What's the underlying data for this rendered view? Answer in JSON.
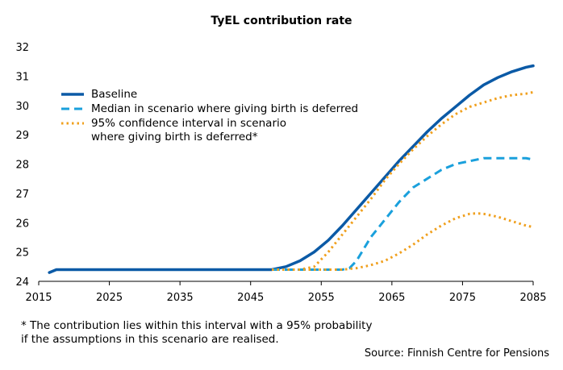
{
  "chart_data": {
    "type": "line",
    "title": "TyEL contribution rate",
    "xlabel": "",
    "ylabel": "",
    "xlim": [
      2015,
      2085
    ],
    "ylim": [
      24,
      32
    ],
    "xticks": [
      2015,
      2025,
      2035,
      2045,
      2055,
      2065,
      2075,
      2085
    ],
    "yticks": [
      24,
      25,
      26,
      27,
      28,
      29,
      30,
      31,
      32
    ],
    "grid": false,
    "legend_position": "top-left",
    "series": [
      {
        "name": "Baseline",
        "style": "solid",
        "color": "#0b5aa6",
        "x": [
          2016.5,
          2017.5,
          2020,
          2030,
          2040,
          2048,
          2050,
          2052,
          2054,
          2056,
          2058,
          2060,
          2062,
          2064,
          2066,
          2068,
          2070,
          2072,
          2074,
          2076,
          2078,
          2080,
          2082,
          2084,
          2085
        ],
        "y": [
          24.3,
          24.4,
          24.4,
          24.4,
          24.4,
          24.4,
          24.5,
          24.7,
          25.0,
          25.4,
          25.9,
          26.45,
          27.0,
          27.55,
          28.1,
          28.6,
          29.1,
          29.55,
          29.95,
          30.35,
          30.7,
          30.95,
          31.15,
          31.3,
          31.35
        ]
      },
      {
        "name": "Median in scenario where giving birth is deferred",
        "style": "dashed",
        "color": "#1aa0dc",
        "x": [
          2048,
          2052,
          2056,
          2058,
          2059,
          2060,
          2061,
          2062,
          2064,
          2066,
          2068,
          2070,
          2072,
          2074,
          2076,
          2078,
          2080,
          2082,
          2084,
          2085
        ],
        "y": [
          24.4,
          24.4,
          24.4,
          24.4,
          24.45,
          24.7,
          25.1,
          25.5,
          26.1,
          26.7,
          27.2,
          27.5,
          27.8,
          28.0,
          28.1,
          28.2,
          28.2,
          28.2,
          28.2,
          28.15
        ]
      },
      {
        "name": "95% confidence interval in scenario where giving birth is deferred*",
        "style": "dotted",
        "color": "#f0a01e",
        "x": [
          2048,
          2052,
          2054,
          2056,
          2058,
          2060,
          2062,
          2064,
          2066,
          2068,
          2070,
          2072,
          2074,
          2076,
          2078,
          2080,
          2082,
          2084,
          2085
        ],
        "y": [
          24.4,
          24.4,
          24.5,
          25.0,
          25.6,
          26.2,
          26.8,
          27.45,
          28.0,
          28.5,
          28.95,
          29.35,
          29.7,
          29.95,
          30.1,
          30.25,
          30.35,
          30.4,
          30.45
        ]
      },
      {
        "name": "95% confidence interval lower bound",
        "style": "dotted",
        "color": "#f0a01e",
        "legend": false,
        "x": [
          2048,
          2056,
          2058,
          2060,
          2062,
          2064,
          2066,
          2068,
          2070,
          2072,
          2074,
          2076,
          2077,
          2078,
          2080,
          2082,
          2084,
          2085
        ],
        "y": [
          24.4,
          24.4,
          24.4,
          24.45,
          24.55,
          24.7,
          24.95,
          25.25,
          25.6,
          25.9,
          26.15,
          26.3,
          26.32,
          26.3,
          26.2,
          26.05,
          25.9,
          25.85
        ]
      }
    ]
  },
  "legend": {
    "items": [
      {
        "lines": [
          "Baseline"
        ],
        "style": "solid",
        "color": "#0b5aa6"
      },
      {
        "lines": [
          "Median in scenario where giving birth is deferred"
        ],
        "style": "dashed",
        "color": "#1aa0dc"
      },
      {
        "lines": [
          "95% confidence interval in scenario",
          "where giving birth is deferred*"
        ],
        "style": "dotted",
        "color": "#f0a01e"
      }
    ]
  },
  "footnote": {
    "line1": "* The contribution lies within this interval with a 95% probability",
    "line2": "if the assumptions in this scenario are realised."
  },
  "source": "Source: Finnish Centre for Pensions",
  "colors": {
    "axis": "#000000"
  }
}
